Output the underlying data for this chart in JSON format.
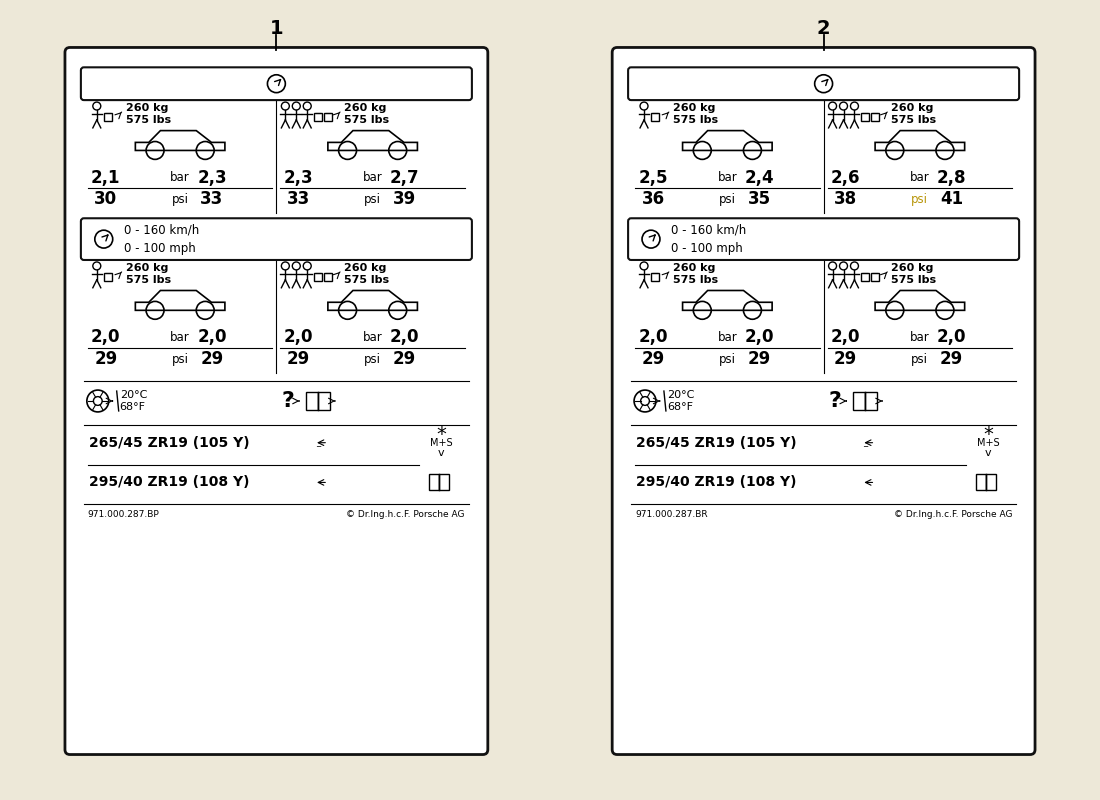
{
  "bg_color": "#ede8d8",
  "card_bg": "#ffffff",
  "title1": "1",
  "title2": "2",
  "label1": {
    "part_number": "971.000.287.BP",
    "copyright": "© Dr.Ing.h.c.F. Porsche AG",
    "s1_load1_kg": "260 kg",
    "s1_load1_lbs": "575 lbs",
    "s1_load2_kg": "260 kg",
    "s1_load2_lbs": "575 lbs",
    "s1_fl_bar": "2,1",
    "s1_rl_bar": "2,3",
    "s1_fl_psi": "30",
    "s1_rl_psi": "33",
    "s1_fr_bar": "2,3",
    "s1_rr_bar": "2,7",
    "s1_fr_psi": "33",
    "s1_rr_psi": "39",
    "s1_psi_highlight": false,
    "s2_speed": "0 - 160 km/h\n0 - 100 mph",
    "s2_fl_bar": "2,0",
    "s2_rl_bar": "2,0",
    "s2_fl_psi": "29",
    "s2_rl_psi": "29",
    "s2_fr_bar": "2,0",
    "s2_rr_bar": "2,0",
    "s2_fr_psi": "29",
    "s2_rr_psi": "29",
    "temp_c": "20°C",
    "temp_f": "68°F",
    "tyre1": "265/45 ZR19 (105 Y)",
    "tyre2": "295/40 ZR19 (108 Y)"
  },
  "label2": {
    "part_number": "971.000.287.BR",
    "copyright": "© Dr.Ing.h.c.F. Porsche AG",
    "s1_load1_kg": "260 kg",
    "s1_load1_lbs": "575 lbs",
    "s1_load2_kg": "260 kg",
    "s1_load2_lbs": "575 lbs",
    "s1_fl_bar": "2,5",
    "s1_rl_bar": "2,4",
    "s1_fl_psi": "36",
    "s1_rl_psi": "35",
    "s1_fr_bar": "2,6",
    "s1_rr_bar": "2,8",
    "s1_fr_psi": "38",
    "s1_rr_psi": "41",
    "s1_psi_highlight": true,
    "s2_speed": "0 - 160 km/h\n0 - 100 mph",
    "s2_fl_bar": "2,0",
    "s2_rl_bar": "2,0",
    "s2_fl_psi": "29",
    "s2_rl_psi": "29",
    "s2_fr_bar": "2,0",
    "s2_rr_bar": "2,0",
    "s2_fr_psi": "29",
    "s2_rr_psi": "29",
    "temp_c": "20°C",
    "temp_f": "68°F",
    "tyre1": "265/45 ZR19 (105 Y)",
    "tyre2": "295/40 ZR19 (108 Y)"
  }
}
